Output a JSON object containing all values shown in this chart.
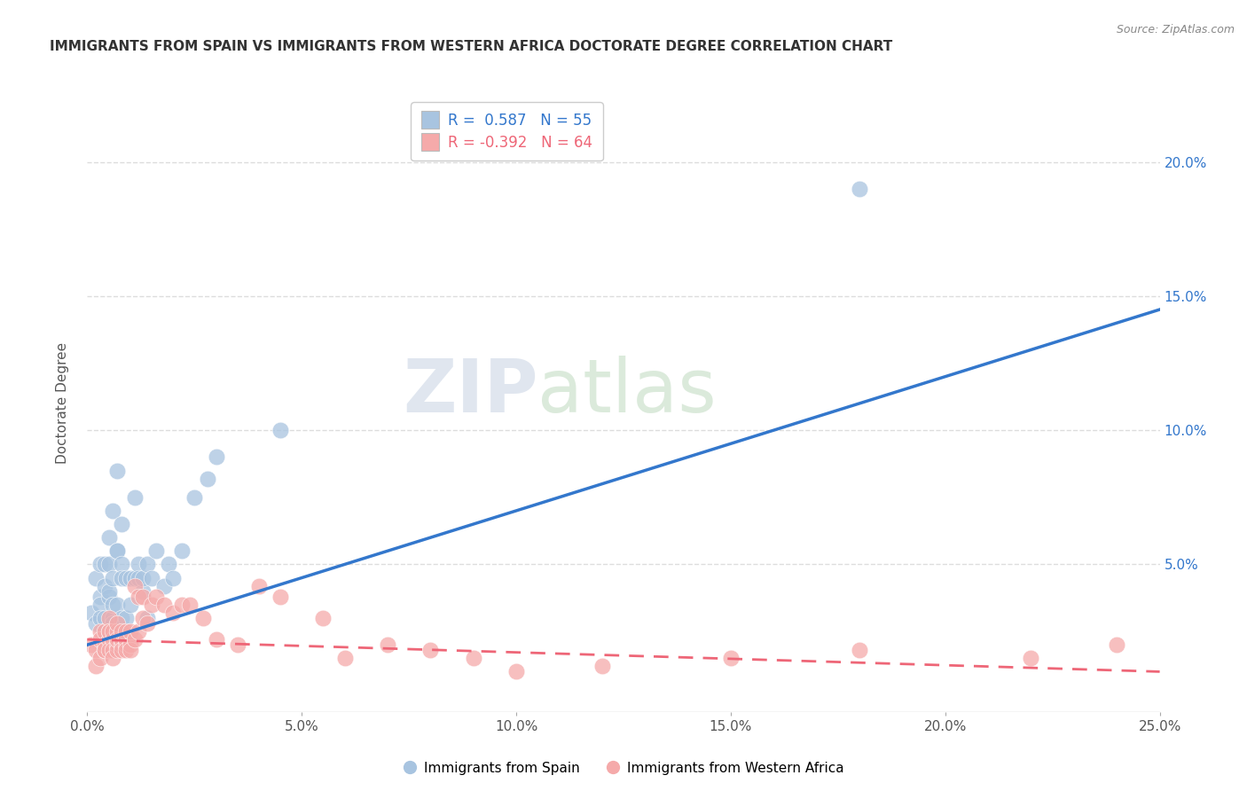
{
  "title": "IMMIGRANTS FROM SPAIN VS IMMIGRANTS FROM WESTERN AFRICA DOCTORATE DEGREE CORRELATION CHART",
  "source": "Source: ZipAtlas.com",
  "ylabel": "Doctorate Degree",
  "xlim": [
    0.0,
    0.25
  ],
  "ylim": [
    -0.005,
    0.225
  ],
  "xtick_values": [
    0.0,
    0.05,
    0.1,
    0.15,
    0.2,
    0.25
  ],
  "ytick_values": [
    0.0,
    0.05,
    0.1,
    0.15,
    0.2
  ],
  "legend_r_spain": "0.587",
  "legend_n_spain": "55",
  "legend_r_africa": "-0.392",
  "legend_n_africa": "64",
  "spain_color": "#A8C4E0",
  "africa_color": "#F5AAAA",
  "spain_line_color": "#3377CC",
  "africa_line_color": "#EE6677",
  "watermark_zip": "ZIP",
  "watermark_atlas": "atlas",
  "background_color": "#FFFFFF",
  "grid_color": "#DDDDDD",
  "spain_scatter": [
    [
      0.001,
      0.032
    ],
    [
      0.002,
      0.028
    ],
    [
      0.002,
      0.045
    ],
    [
      0.003,
      0.038
    ],
    [
      0.003,
      0.035
    ],
    [
      0.003,
      0.03
    ],
    [
      0.003,
      0.05
    ],
    [
      0.004,
      0.03
    ],
    [
      0.004,
      0.025
    ],
    [
      0.004,
      0.042
    ],
    [
      0.004,
      0.05
    ],
    [
      0.005,
      0.06
    ],
    [
      0.005,
      0.025
    ],
    [
      0.005,
      0.038
    ],
    [
      0.005,
      0.025
    ],
    [
      0.005,
      0.05
    ],
    [
      0.005,
      0.04
    ],
    [
      0.006,
      0.028
    ],
    [
      0.006,
      0.03
    ],
    [
      0.006,
      0.035
    ],
    [
      0.006,
      0.07
    ],
    [
      0.006,
      0.028
    ],
    [
      0.006,
      0.045
    ],
    [
      0.007,
      0.085
    ],
    [
      0.007,
      0.055
    ],
    [
      0.007,
      0.035
    ],
    [
      0.007,
      0.025
    ],
    [
      0.007,
      0.055
    ],
    [
      0.008,
      0.03
    ],
    [
      0.008,
      0.05
    ],
    [
      0.008,
      0.065
    ],
    [
      0.008,
      0.045
    ],
    [
      0.009,
      0.045
    ],
    [
      0.009,
      0.03
    ],
    [
      0.01,
      0.045
    ],
    [
      0.01,
      0.035
    ],
    [
      0.011,
      0.045
    ],
    [
      0.011,
      0.075
    ],
    [
      0.012,
      0.05
    ],
    [
      0.012,
      0.045
    ],
    [
      0.013,
      0.04
    ],
    [
      0.013,
      0.045
    ],
    [
      0.014,
      0.05
    ],
    [
      0.014,
      0.03
    ],
    [
      0.015,
      0.045
    ],
    [
      0.016,
      0.055
    ],
    [
      0.018,
      0.042
    ],
    [
      0.019,
      0.05
    ],
    [
      0.02,
      0.045
    ],
    [
      0.022,
      0.055
    ],
    [
      0.025,
      0.075
    ],
    [
      0.028,
      0.082
    ],
    [
      0.03,
      0.09
    ],
    [
      0.045,
      0.1
    ],
    [
      0.18,
      0.19
    ]
  ],
  "africa_scatter": [
    [
      0.001,
      0.02
    ],
    [
      0.002,
      0.018
    ],
    [
      0.002,
      0.012
    ],
    [
      0.003,
      0.025
    ],
    [
      0.003,
      0.022
    ],
    [
      0.003,
      0.015
    ],
    [
      0.004,
      0.018
    ],
    [
      0.004,
      0.02
    ],
    [
      0.004,
      0.025
    ],
    [
      0.004,
      0.018
    ],
    [
      0.005,
      0.022
    ],
    [
      0.005,
      0.025
    ],
    [
      0.005,
      0.03
    ],
    [
      0.005,
      0.025
    ],
    [
      0.005,
      0.018
    ],
    [
      0.006,
      0.022
    ],
    [
      0.006,
      0.025
    ],
    [
      0.006,
      0.018
    ],
    [
      0.006,
      0.015
    ],
    [
      0.007,
      0.02
    ],
    [
      0.007,
      0.025
    ],
    [
      0.007,
      0.018
    ],
    [
      0.007,
      0.022
    ],
    [
      0.007,
      0.028
    ],
    [
      0.008,
      0.02
    ],
    [
      0.008,
      0.022
    ],
    [
      0.008,
      0.025
    ],
    [
      0.008,
      0.018
    ],
    [
      0.009,
      0.02
    ],
    [
      0.009,
      0.025
    ],
    [
      0.009,
      0.022
    ],
    [
      0.009,
      0.018
    ],
    [
      0.01,
      0.02
    ],
    [
      0.01,
      0.025
    ],
    [
      0.01,
      0.018
    ],
    [
      0.011,
      0.022
    ],
    [
      0.011,
      0.042
    ],
    [
      0.012,
      0.038
    ],
    [
      0.012,
      0.025
    ],
    [
      0.013,
      0.03
    ],
    [
      0.013,
      0.038
    ],
    [
      0.014,
      0.028
    ],
    [
      0.015,
      0.035
    ],
    [
      0.016,
      0.038
    ],
    [
      0.018,
      0.035
    ],
    [
      0.02,
      0.032
    ],
    [
      0.022,
      0.035
    ],
    [
      0.024,
      0.035
    ],
    [
      0.027,
      0.03
    ],
    [
      0.03,
      0.022
    ],
    [
      0.035,
      0.02
    ],
    [
      0.04,
      0.042
    ],
    [
      0.045,
      0.038
    ],
    [
      0.055,
      0.03
    ],
    [
      0.06,
      0.015
    ],
    [
      0.07,
      0.02
    ],
    [
      0.08,
      0.018
    ],
    [
      0.09,
      0.015
    ],
    [
      0.1,
      0.01
    ],
    [
      0.12,
      0.012
    ],
    [
      0.15,
      0.015
    ],
    [
      0.18,
      0.018
    ],
    [
      0.22,
      0.015
    ],
    [
      0.24,
      0.02
    ]
  ]
}
